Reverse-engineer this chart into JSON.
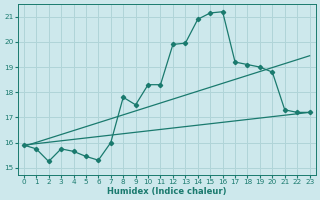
{
  "xlabel": "Humidex (Indice chaleur)",
  "xlim": [
    -0.5,
    23.5
  ],
  "ylim": [
    14.7,
    21.5
  ],
  "yticks": [
    15,
    16,
    17,
    18,
    19,
    20,
    21
  ],
  "xticks": [
    0,
    1,
    2,
    3,
    4,
    5,
    6,
    7,
    8,
    9,
    10,
    11,
    12,
    13,
    14,
    15,
    16,
    17,
    18,
    19,
    20,
    21,
    22,
    23
  ],
  "bg_color": "#cde8ec",
  "grid_color": "#b0d4d8",
  "line_color": "#1a7a6e",
  "series1_x": [
    0,
    1,
    2,
    3,
    4,
    5,
    6,
    7,
    8,
    9,
    10,
    11,
    12,
    13,
    14,
    15,
    16,
    17,
    18,
    19,
    20,
    21,
    22,
    23
  ],
  "series1_y": [
    15.9,
    15.75,
    15.25,
    15.75,
    15.65,
    15.45,
    15.3,
    16.0,
    17.8,
    17.5,
    18.3,
    18.3,
    19.9,
    19.95,
    20.9,
    21.15,
    21.2,
    19.2,
    19.1,
    19.0,
    18.8,
    17.3,
    17.2,
    17.2
  ],
  "series2_x": [
    0,
    23
  ],
  "series2_y": [
    15.9,
    17.2
  ],
  "series3_x": [
    0,
    23
  ],
  "series3_y": [
    15.85,
    19.45
  ]
}
